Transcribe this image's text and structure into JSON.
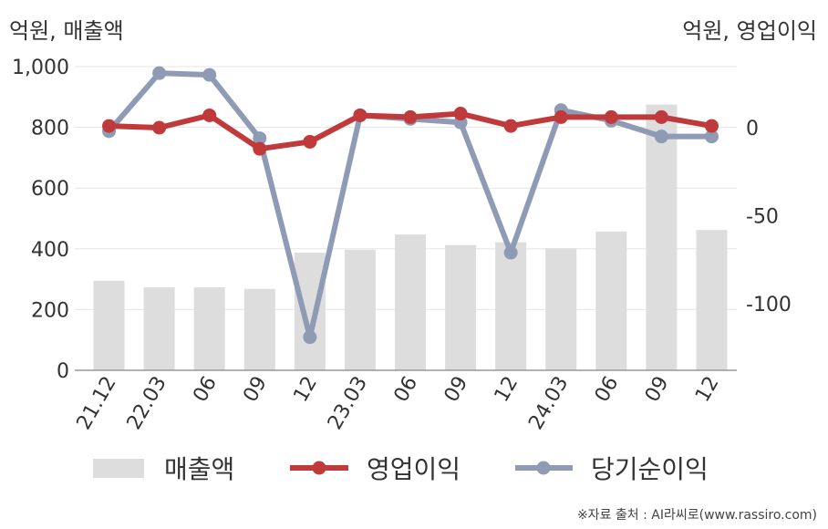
{
  "labels": {
    "left_unit": "억원, 매출액",
    "right_unit": "억원, 영업이익",
    "source": "※자료 출처 : AI라씨로(www.rassiro.com)"
  },
  "chart_data": {
    "type": "bar+line",
    "categories": [
      "21.12",
      "22.03",
      "06",
      "09",
      "12",
      "23.03",
      "06",
      "09",
      "12",
      "24.03",
      "06",
      "09",
      "12"
    ],
    "y_left": {
      "ylim": [
        0,
        1000
      ],
      "ticks": [
        0,
        200,
        400,
        600,
        800,
        1000
      ],
      "tick_labels": [
        "0",
        "200",
        "400",
        "600",
        "800",
        "1,000"
      ]
    },
    "y_right": {
      "ylim": [
        -140,
        35
      ],
      "ticks": [
        0,
        -50,
        -100
      ],
      "tick_labels": [
        "0",
        "-50",
        "-100"
      ]
    },
    "grid": true,
    "legend_position": "bottom",
    "series": [
      {
        "name": "매출액",
        "type": "bar",
        "axis": "left",
        "color": "#dddddd",
        "values": [
          295,
          273,
          273,
          268,
          387,
          397,
          447,
          412,
          422,
          402,
          457,
          875,
          462
        ]
      },
      {
        "name": "영업이익",
        "type": "line",
        "axis": "right",
        "color": "#c0393b",
        "values": [
          1,
          0,
          7,
          -12,
          -8,
          7,
          6,
          8,
          1,
          6,
          6,
          6,
          1
        ]
      },
      {
        "name": "당기순이익",
        "type": "line",
        "axis": "right",
        "color": "#8f9bb5",
        "values": [
          -2,
          31,
          30,
          -6,
          -119,
          7,
          5,
          3,
          -71,
          10,
          4,
          -5,
          -5
        ]
      }
    ]
  }
}
